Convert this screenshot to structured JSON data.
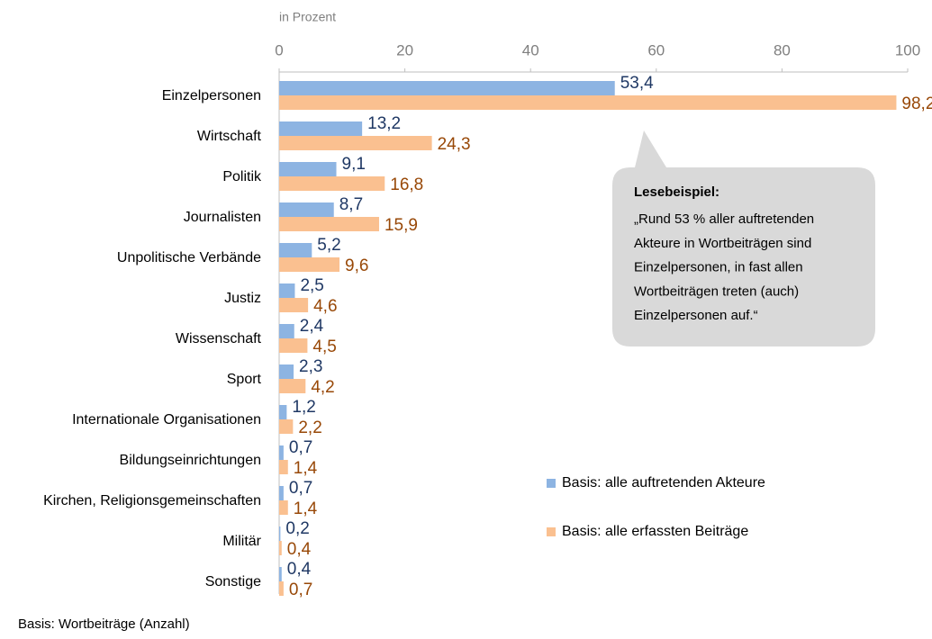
{
  "chart_data": {
    "type": "hbar",
    "axis_label": "in Prozent",
    "categories": [
      "Einzelpersonen",
      "Wirtschaft",
      "Politik",
      "Journalisten",
      "Unpolitische Verbände",
      "Justiz",
      "Wissenschaft",
      "Sport",
      "Internationale Organisationen",
      "Bildungseinrichtungen",
      "Kirchen, Religionsgemeinschaften",
      "Militär",
      "Sonstige"
    ],
    "series": [
      {
        "name": "Basis: alle auftretenden Akteure",
        "color": "#8db4e2",
        "label_color": "#1f3864",
        "values": [
          53.4,
          13.2,
          9.1,
          8.7,
          5.2,
          2.5,
          2.4,
          2.3,
          1.2,
          0.7,
          0.7,
          0.2,
          0.4
        ],
        "value_labels": [
          "53,4",
          "13,2",
          "9,1",
          "8,7",
          "5,2",
          "2,5",
          "2,4",
          "2,3",
          "1,2",
          "0,7",
          "0,7",
          "0,2",
          "0,4"
        ]
      },
      {
        "name": "Basis: alle erfassten Beiträge",
        "color": "#fac090",
        "label_color": "#984807",
        "values": [
          98.2,
          24.3,
          16.8,
          15.9,
          9.6,
          4.6,
          4.5,
          4.2,
          2.2,
          1.4,
          1.4,
          0.4,
          0.7
        ],
        "value_labels": [
          "98,2",
          "24,3",
          "16,8",
          "15,9",
          "9,6",
          "4,6",
          "4,5",
          "4,2",
          "2,2",
          "1,4",
          "1,4",
          "0,4",
          "0,7"
        ]
      }
    ],
    "xlim": [
      0,
      100
    ],
    "xticks": [
      0,
      20,
      40,
      60,
      80,
      100
    ],
    "legend": "right",
    "annotation": {
      "title": "Lesebeispiel:",
      "lines": [
        "„Rund 53 % aller auftretenden",
        "Akteure in Wortbeiträgen sind",
        "Einzelpersonen,  in fast allen",
        "Wortbeiträgen  treten (auch)",
        "Einzelpersonen  auf.“"
      ]
    },
    "footnote": "Basis: Wortbeiträge (Anzahl)"
  }
}
